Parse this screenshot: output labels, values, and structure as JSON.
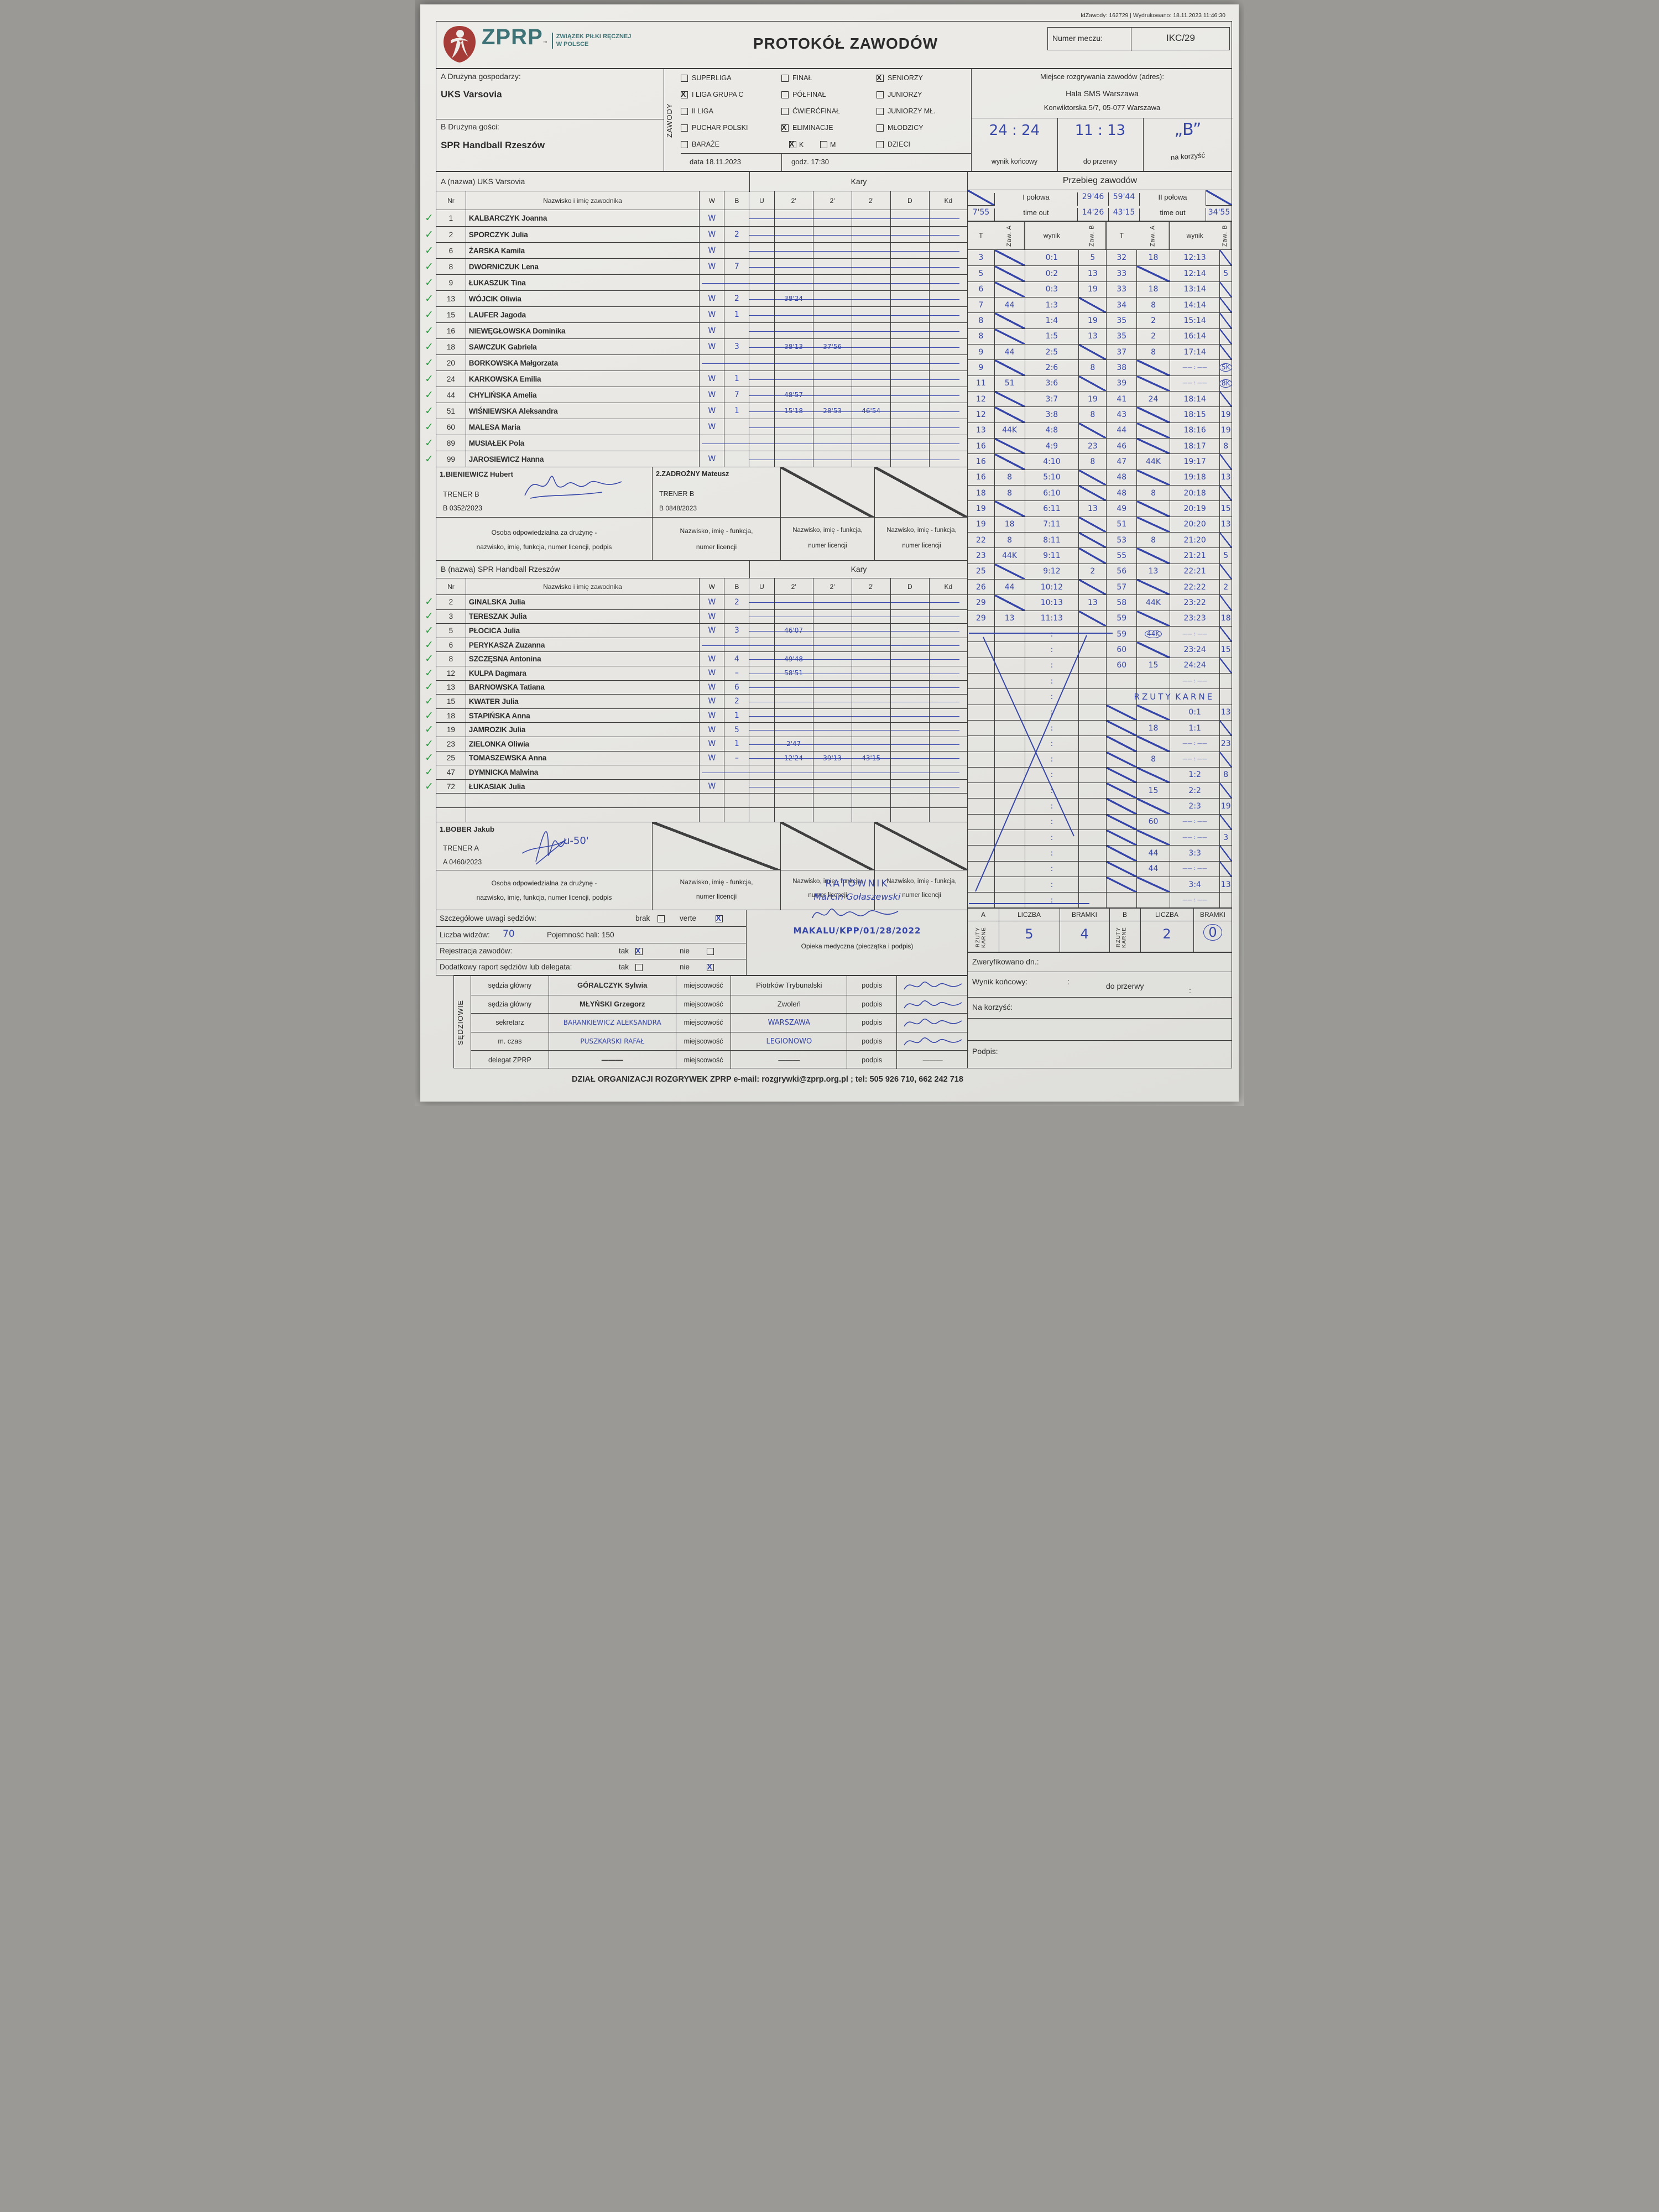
{
  "meta": {
    "id_line": "IdZawody: 162729 | Wydrukowano: 18.11.2023 11:46:30"
  },
  "header": {
    "title": "PROTOKÓŁ ZAWODÓW",
    "logo_abbr": "ZPRP",
    "logo_tm": "™",
    "logo_org1": "ZWIĄZEK PIŁKI RĘCZNEJ",
    "logo_org2": "W POLSCE",
    "match_no_label": "Numer meczu:",
    "match_no": "IKC/29"
  },
  "teams_box": {
    "team_a_label": "A Drużyna gospodarzy:",
    "team_a": "UKS Varsovia",
    "team_b_label": "B Drużyna gości:",
    "team_b": "SPR Handball Rzeszów"
  },
  "zawody": {
    "label": "ZAWODY",
    "col1": [
      {
        "label": "SUPERLIGA",
        "checked": false
      },
      {
        "label": "I LIGA GRUPA C",
        "checked": true
      },
      {
        "label": "II LIGA",
        "checked": false
      },
      {
        "label": "PUCHAR POLSKI",
        "checked": false
      },
      {
        "label": "BARAŻE",
        "checked": false
      }
    ],
    "col2": [
      {
        "label": "FINAŁ",
        "checked": false
      },
      {
        "label": "PÓŁFINAŁ",
        "checked": false
      },
      {
        "label": "ĆWIERĆFINAŁ",
        "checked": false
      },
      {
        "label": "ELIMINACJE",
        "checked": true
      }
    ],
    "km": {
      "k_label": "K",
      "k_checked": true,
      "m_label": "M",
      "m_checked": false
    },
    "col3": [
      {
        "label": "SENIORZY",
        "checked": true
      },
      {
        "label": "JUNIORZY",
        "checked": false
      },
      {
        "label": "JUNIORZY MŁ.",
        "checked": false
      },
      {
        "label": "MŁODZICY",
        "checked": false
      },
      {
        "label": "DZIECI",
        "checked": false
      }
    ],
    "date_label": "data 18.11.2023",
    "time_label": "godz. 17:30"
  },
  "venue": {
    "label": "Miejsce rozgrywania zawodów (adres):",
    "line1": "Hala SMS Warszawa",
    "line2": "Konwiktorska 5/7, 05-077 Warszawa",
    "final_score": "24 : 24",
    "half_score": "11 : 13",
    "favor": "„B”",
    "final_label": "wynik końcowy",
    "half_label": "do przerwy",
    "favor_label": "na korzyść"
  },
  "kary_label": "Kary",
  "table_cols": [
    "Nr",
    "Nazwisko i imię zawodnika",
    "W",
    "B",
    "U",
    "2'",
    "2'",
    "2'",
    "D",
    "Kd"
  ],
  "team_a_table": {
    "header": "A (nazwa) UKS Varsovia",
    "players": [
      {
        "nr": "1",
        "name": "KALBARCZYK Joanna",
        "w": "W",
        "b": "",
        "t1": "",
        "t2": "",
        "t3": "",
        "check": true
      },
      {
        "nr": "2",
        "name": "SPORCZYK Julia",
        "w": "W",
        "b": "2",
        "t1": "",
        "t2": "",
        "t3": "",
        "check": true
      },
      {
        "nr": "6",
        "name": "ŻARSKA Kamila",
        "w": "W",
        "b": "",
        "t1": "",
        "t2": "",
        "t3": "",
        "check": true
      },
      {
        "nr": "8",
        "name": "DWORNICZUK Lena",
        "w": "W",
        "b": "7",
        "t1": "",
        "t2": "",
        "t3": "",
        "check": true
      },
      {
        "nr": "9",
        "name": "ŁUKASZUK Tina",
        "w": "",
        "b": "",
        "t1": "",
        "t2": "",
        "t3": "",
        "check": true
      },
      {
        "nr": "13",
        "name": "WÓJCIK Oliwia",
        "w": "W",
        "b": "2",
        "t1": "38'24",
        "t2": "",
        "t3": "",
        "check": true
      },
      {
        "nr": "15",
        "name": "LAUFER Jagoda",
        "w": "W",
        "b": "1",
        "t1": "",
        "t2": "",
        "t3": "",
        "check": true
      },
      {
        "nr": "16",
        "name": "NIEWĘGŁOWSKA Dominika",
        "w": "W",
        "b": "",
        "t1": "",
        "t2": "",
        "t3": "",
        "check": true
      },
      {
        "nr": "18",
        "name": "SAWCZUK Gabriela",
        "w": "W",
        "b": "3",
        "t1": "38'13",
        "t2": "37'56",
        "t3": "",
        "check": true
      },
      {
        "nr": "20",
        "name": "BORKOWSKA Małgorzata",
        "w": "",
        "b": "",
        "t1": "",
        "t2": "",
        "t3": "",
        "check": true
      },
      {
        "nr": "24",
        "name": "KARKOWSKA Emilia",
        "w": "W",
        "b": "1",
        "t1": "",
        "t2": "",
        "t3": "",
        "check": true
      },
      {
        "nr": "44",
        "name": "CHYLIŃSKA Amelia",
        "w": "W",
        "b": "7",
        "t1": "48'57",
        "t2": "",
        "t3": "",
        "check": true
      },
      {
        "nr": "51",
        "name": "WIŚNIEWSKA Aleksandra",
        "w": "W",
        "b": "1",
        "t1": "15'18",
        "t2": "28'53",
        "t3": "46'54",
        "check": true
      },
      {
        "nr": "60",
        "name": "MALESA Maria",
        "w": "W",
        "b": "",
        "t1": "",
        "t2": "",
        "t3": "",
        "check": true
      },
      {
        "nr": "89",
        "name": "MUSIAŁEK Pola",
        "w": "",
        "b": "",
        "t1": "",
        "t2": "",
        "t3": "",
        "check": true
      },
      {
        "nr": "99",
        "name": "JAROSIEWICZ Hanna",
        "w": "W",
        "b": "",
        "t1": "",
        "t2": "",
        "t3": "",
        "check": true
      }
    ]
  },
  "trainers_a": {
    "t1_name": "1.BIENIEWICZ Hubert",
    "t1_role": "TRENER B",
    "t1_lic": "B  0352/2023",
    "t2_name": "2.ZADROŻNY Mateusz",
    "t2_role": "TRENER B",
    "t2_lic": "B  0848/2023"
  },
  "responsible_band": {
    "c1a": "Osoba odpowiedzialna za drużynę -",
    "c1b": "nazwisko, imię, funkcja, numer licencji, podpis",
    "c2a": "Nazwisko, imię - funkcja,",
    "c2b": "numer licencji"
  },
  "team_b_table": {
    "header": "B (nazwa) SPR Handball Rzeszów",
    "players": [
      {
        "nr": "2",
        "name": "GINALSKA Julia",
        "w": "W",
        "b": "2",
        "t1": "",
        "t2": "",
        "t3": "",
        "check": true
      },
      {
        "nr": "3",
        "name": "TERESZAK Julia",
        "w": "W",
        "b": "",
        "t1": "",
        "t2": "",
        "t3": "",
        "check": true
      },
      {
        "nr": "5",
        "name": "PŁOCICA Julia",
        "w": "W",
        "b": "3",
        "t1": "46'07",
        "t2": "",
        "t3": "",
        "check": true
      },
      {
        "nr": "6",
        "name": "PERYKASZA Zuzanna",
        "w": "",
        "b": "",
        "t1": "",
        "t2": "",
        "t3": "",
        "check": true
      },
      {
        "nr": "8",
        "name": "SZCZĘSNA  Antonina",
        "w": "W",
        "b": "4",
        "t1": "49'48",
        "t2": "",
        "t3": "",
        "check": true
      },
      {
        "nr": "12",
        "name": "KULPA Dagmara",
        "w": "W",
        "b": "–",
        "t1": "58'51",
        "t2": "",
        "t3": "",
        "check": true
      },
      {
        "nr": "13",
        "name": "BARNOWSKA Tatiana",
        "w": "W",
        "b": "6",
        "t1": "",
        "t2": "",
        "t3": "",
        "check": true
      },
      {
        "nr": "15",
        "name": "KWATER Julia",
        "w": "W",
        "b": "2",
        "t1": "",
        "t2": "",
        "t3": "",
        "check": true
      },
      {
        "nr": "18",
        "name": "STAPIŃSKA Anna",
        "w": "W",
        "b": "1",
        "t1": "",
        "t2": "",
        "t3": "",
        "check": true
      },
      {
        "nr": "19",
        "name": "JAMROZIK Julia",
        "w": "W",
        "b": "5",
        "t1": "",
        "t2": "",
        "t3": "",
        "check": true
      },
      {
        "nr": "23",
        "name": "ZIELONKA Oliwia",
        "w": "W",
        "b": "1",
        "t1": "2'47",
        "t2": "",
        "t3": "",
        "check": true
      },
      {
        "nr": "25",
        "name": "TOMASZEWSKA Anna",
        "w": "W",
        "b": "–",
        "t1": "12'24",
        "t2": "39'13",
        "t3": "43'15",
        "check": true
      },
      {
        "nr": "47",
        "name": "DYMNICKA Malwina",
        "w": "",
        "b": "",
        "t1": "",
        "t2": "",
        "t3": "",
        "check": true
      },
      {
        "nr": "72",
        "name": "ŁUKASIAK Julia",
        "w": "W",
        "b": "",
        "t1": "",
        "t2": "",
        "t3": "",
        "check": true
      },
      {
        "nr": "",
        "name": "",
        "w": "",
        "b": "",
        "t1": "",
        "t2": "",
        "t3": "",
        "check": false
      },
      {
        "nr": "",
        "name": "",
        "w": "",
        "b": "",
        "t1": "",
        "t2": "",
        "t3": "",
        "check": false
      }
    ]
  },
  "trainer_b": {
    "t1_name": "1.BOBER Jakub",
    "t1_role": "TRENER A",
    "t1_lic": "A  0460/2023",
    "note": "u-50'"
  },
  "notes": {
    "uwagi_label": "Szczegółowe uwagi sędziów:",
    "brak": "brak",
    "verte": "verte",
    "widzow_label": "Liczba widzów:",
    "widzow_value": "70",
    "pojemnosc_label": "Pojemność hali:  150",
    "rejestracja_label": "Rejestracja zawodów:",
    "tak": "tak",
    "nie": "nie",
    "raport_label": "Dodatkowy raport sędziów lub delegata:",
    "ratownik": "RATOWNIK",
    "medic_name": "Marcin Gołaszewski",
    "medic_code": "MAKALU/KPP/01/28/2022",
    "medical_label": "Opieka medyczna (pieczątka i podpis)"
  },
  "officials": {
    "label": "SĘDZIOWIE",
    "miejscowosc": "miejscowość",
    "podpis": "podpis",
    "rows": [
      {
        "role": "sędzia główny",
        "name": "GÓRALCZYK Sylwia",
        "hand": false,
        "place": "Piotrków Trybunalski",
        "place_hand": false,
        "sig": "squiggle"
      },
      {
        "role": "sędzia główny",
        "name": "MŁYŃSKI Grzegorz",
        "hand": false,
        "place": "Zwoleń",
        "place_hand": false,
        "sig": "squiggle"
      },
      {
        "role": "sekretarz",
        "name": "BARANKIEWICZ ALEKSANDRA",
        "hand": true,
        "place": "WARSZAWA",
        "place_hand": true,
        "sig": "squiggle"
      },
      {
        "role": "m. czas",
        "name": "PUSZKARSKI RAFAŁ",
        "hand": true,
        "place": "LEGIONOWO",
        "place_hand": true,
        "sig": "squiggle"
      },
      {
        "role": "delegat ZPRP",
        "name": "———",
        "hand": false,
        "place": "———",
        "place_hand": false,
        "sig": "dash"
      }
    ]
  },
  "footer": "DZIAŁ ORGANIZACJI ROZGRYWEK ZPRP e-mail: rozgrywki@zprp.org.pl ; tel: 505 926 710, 662 242 718",
  "przebieg": {
    "title": "Przebieg zawodów",
    "half1": "I połowa",
    "half2": "II połowa",
    "timeout1": "time out",
    "timeout2": "time out",
    "h1_t1": "29'46",
    "h1_t2": "59'44",
    "to_a": "7'55",
    "to_m1": "14'26",
    "to_m2": "43'15",
    "to_b": "34'55",
    "cols": [
      "T",
      "Zaw. A",
      "wynik",
      "Zaw. B",
      "T",
      "Zaw. A",
      "wynik",
      "Zaw. B"
    ],
    "rows": [
      [
        "3",
        "/",
        "0:1",
        "5",
        "32",
        "18",
        "12:13",
        "/"
      ],
      [
        "5",
        "/",
        "0:2",
        "13",
        "33",
        "/",
        "12:14",
        "5"
      ],
      [
        "6",
        "/",
        "0:3",
        "19",
        "33",
        "18",
        "13:14",
        "/"
      ],
      [
        "7",
        "44",
        "1:3",
        "/",
        "34",
        "8",
        "14:14",
        "/"
      ],
      [
        "8",
        "/",
        "1:4",
        "19",
        "35",
        "2",
        "15:14",
        "/"
      ],
      [
        "8",
        "/",
        "1:5",
        "13",
        "35",
        "2",
        "16:14",
        "/"
      ],
      [
        "9",
        "44",
        "2:5",
        "/",
        "37",
        "8",
        "17:14",
        "/"
      ],
      [
        "9",
        "/",
        "2:6",
        "8",
        "38",
        "/",
        "–:–",
        "(5K)"
      ],
      [
        "11",
        "51",
        "3:6",
        "/",
        "39",
        "/",
        "–:–",
        "(8K)"
      ],
      [
        "12",
        "/",
        "3:7",
        "19",
        "41",
        "24",
        "18:14",
        "/"
      ],
      [
        "12",
        "/",
        "3:8",
        "8",
        "43",
        "/",
        "18:15",
        "19"
      ],
      [
        "13",
        "44K",
        "4:8",
        "/",
        "44",
        "/",
        "18:16",
        "19"
      ],
      [
        "16",
        "/",
        "4:9",
        "23",
        "46",
        "/",
        "18:17",
        "8"
      ],
      [
        "16",
        "/",
        "4:10",
        "8",
        "47",
        "44K",
        "19:17",
        "/"
      ],
      [
        "16",
        "8",
        "5:10",
        "/",
        "48",
        "/",
        "19:18",
        "13"
      ],
      [
        "18",
        "8",
        "6:10",
        "/",
        "48",
        "8",
        "20:18",
        "/"
      ],
      [
        "19",
        "/",
        "6:11",
        "13",
        "49",
        "/",
        "20:19",
        "15"
      ],
      [
        "19",
        "18",
        "7:11",
        "/",
        "51",
        "/",
        "20:20",
        "13"
      ],
      [
        "22",
        "8",
        "8:11",
        "/",
        "53",
        "8",
        "21:20",
        "/"
      ],
      [
        "23",
        "44K",
        "9:11",
        "/",
        "55",
        "/",
        "21:21",
        "5"
      ],
      [
        "25",
        "/",
        "9:12",
        "2",
        "56",
        "13",
        "22:21",
        "/"
      ],
      [
        "26",
        "44",
        "10:12",
        "/",
        "57",
        "/",
        "22:22",
        "2"
      ],
      [
        "29",
        "/",
        "10:13",
        "13",
        "58",
        "44K",
        "23:22",
        "/"
      ],
      [
        "29",
        "13",
        "11:13",
        "/",
        "59",
        "/",
        "23:23",
        "18"
      ],
      [
        "",
        "",
        ":",
        "",
        "59",
        "(44K)",
        "–:–",
        "/"
      ],
      [
        "",
        "",
        ":",
        "",
        "60",
        "/",
        "23:24",
        "15"
      ],
      [
        "",
        "",
        ":",
        "",
        "60",
        "15",
        "24:24",
        "/"
      ],
      [
        "",
        "",
        ":",
        "",
        "",
        "",
        "–:–",
        ""
      ],
      [
        "",
        "",
        ":",
        "",
        "",
        "RZUTY",
        "KARNE",
        ""
      ],
      [
        "",
        "",
        ":",
        "",
        "/",
        "/",
        "0:1",
        "13"
      ],
      [
        "",
        "",
        ":",
        "",
        "/",
        "18",
        "1:1",
        "/"
      ],
      [
        "",
        "",
        ":",
        "",
        "/",
        "/",
        "–:–",
        "23"
      ],
      [
        "",
        "",
        ":",
        "",
        "/",
        "8",
        "–:–",
        "/"
      ],
      [
        "",
        "",
        ":",
        "",
        "/",
        "/",
        "1:2",
        "8"
      ],
      [
        "",
        "",
        ":",
        "",
        "/",
        "15",
        "2:2",
        "/"
      ],
      [
        "",
        "",
        ":",
        "",
        "/",
        "/",
        "2:3",
        "19"
      ],
      [
        "",
        "",
        ":",
        "",
        "/",
        "60",
        "–:–",
        "/"
      ],
      [
        "",
        "",
        ":",
        "",
        "/",
        "/",
        "–:–",
        "3"
      ],
      [
        "",
        "",
        ":",
        "",
        "/",
        "44",
        "3:3",
        "/"
      ],
      [
        "",
        "",
        ":",
        "",
        "/",
        "44",
        "–:–",
        "/"
      ],
      [
        "",
        "",
        ":",
        "",
        "/",
        "/",
        "3:4",
        "13"
      ],
      [
        "",
        "",
        ":",
        "",
        "",
        "",
        "–:–",
        ""
      ]
    ],
    "summary": {
      "a": "A",
      "b": "B",
      "liczba": "LICZBA",
      "bramki": "BRAMKI",
      "rzuty_karne": "RZUTY KARNE",
      "a_liczba": "5",
      "a_bramki": "4",
      "b_liczba": "2",
      "b_bramki": "0"
    },
    "verify": {
      "zweryfikowano": "Zweryfikowano dn.:",
      "wynik": "Wynik końcowy:",
      "colon1": ":",
      "do_przerwy": "do przerwy",
      "colon2": ":",
      "na_korzysc": "Na korzyść:",
      "podpis": "Podpis:"
    }
  }
}
